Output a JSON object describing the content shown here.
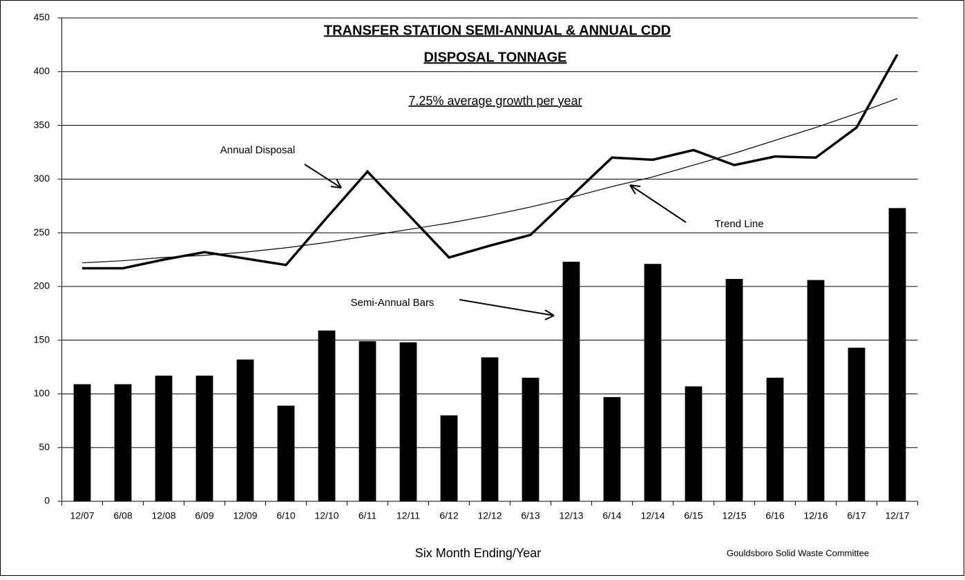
{
  "chart_data": {
    "type": "bar",
    "title": "TRANSFER STATION SEMI-ANNUAL & ANNUAL CDD",
    "title_line2": "DISPOSAL TONNAGE",
    "subtitle": "7.25% average growth per year",
    "x_label": "Six Month Ending/Year",
    "source": "Gouldsboro Solid Waste Committee",
    "categories": [
      "12/07",
      "6/08",
      "12/08",
      "6/09",
      "12/09",
      "6/10",
      "12/10",
      "6/11",
      "12/11",
      "6/12",
      "12/12",
      "6/13",
      "12/13",
      "6/14",
      "12/14",
      "6/15",
      "12/15",
      "6/16",
      "12/16",
      "6/17",
      "12/17"
    ],
    "series": [
      {
        "name": "Semi-Annual Bars",
        "type": "bar",
        "color": "#000000",
        "values": [
          109,
          109,
          117,
          117,
          132,
          89,
          159,
          149,
          148,
          80,
          134,
          115,
          223,
          97,
          221,
          107,
          207,
          115,
          206,
          143,
          273
        ]
      },
      {
        "name": "Annual Disposal",
        "type": "line",
        "color": "#000000",
        "values": [
          217,
          217,
          225,
          232,
          226,
          220,
          264,
          307,
          267,
          227,
          238,
          248,
          284,
          320,
          318,
          327,
          313,
          321,
          320,
          348,
          416
        ]
      },
      {
        "name": "Trend Line",
        "type": "trend",
        "color": "#000000",
        "values": [
          222,
          224,
          227,
          229,
          232,
          236,
          241,
          247,
          253,
          259,
          266,
          274,
          283,
          293,
          302,
          313,
          324,
          336,
          348,
          361,
          375
        ]
      }
    ],
    "ylim": [
      0,
      450
    ],
    "yticks": [
      0,
      50,
      100,
      150,
      200,
      250,
      300,
      350,
      400,
      450
    ],
    "grid": true
  }
}
